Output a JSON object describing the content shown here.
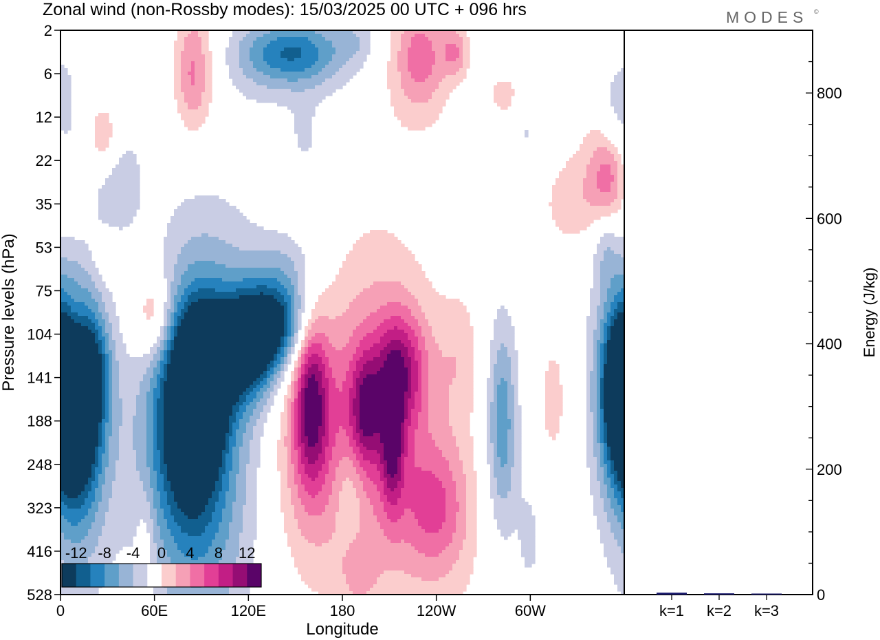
{
  "header": {
    "title": "Zonal wind (non-Rossby modes):  15/03/2025  00 UTC  + 096 hrs",
    "logo_text": "MODES",
    "logo_mark": "©"
  },
  "chart_data": [
    {
      "type": "heatmap",
      "title": "Zonal wind (non-Rossby modes):  15/03/2025  00 UTC  + 096 hrs",
      "xlabel": "Longitude",
      "ylabel": "Pressure levels (hPa)",
      "x_ticks": [
        "0",
        "60E",
        "120E",
        "180",
        "120W",
        "60W"
      ],
      "x_tick_degrees": [
        0,
        60,
        120,
        180,
        240,
        300
      ],
      "xlim": [
        0,
        360
      ],
      "y_ticks": [
        "2",
        "6",
        "12",
        "22",
        "35",
        "53",
        "75",
        "104",
        "141",
        "188",
        "248",
        "323",
        "416",
        "528"
      ],
      "y_order": "top-to-bottom",
      "grid": false,
      "colorbar": {
        "placement": "bottom-left",
        "tick_labels": [
          "-12",
          "-8",
          "-4",
          "0",
          "4",
          "8",
          "12"
        ],
        "levels": [
          -14,
          -12,
          -10,
          -8,
          -6,
          -4,
          -2,
          2,
          4,
          6,
          8,
          10,
          12,
          14
        ],
        "colors": [
          "#0d3b5c",
          "#115f8f",
          "#2682bd",
          "#5f9fc9",
          "#98b4d6",
          "#c9cde4",
          "#ffffff",
          "#fbcdcd",
          "#f6a0b6",
          "#f06fa5",
          "#e23f96",
          "#c21e85",
          "#950d74",
          "#5a0468"
        ]
      },
      "blobs": [
        {
          "lon": 10,
          "lev": 8.3,
          "rl": 9,
          "rv": 1.3,
          "value": -13.5
        },
        {
          "lon": 10,
          "lev": 8.5,
          "rl": 13,
          "rv": 2.0,
          "value": -10
        },
        {
          "lon": 12,
          "lev": 9.0,
          "rl": 18,
          "rv": 3.0,
          "value": -4
        },
        {
          "lon": 3,
          "lev": 2.0,
          "rl": 6,
          "rv": 1.2,
          "value": -3
        },
        {
          "lon": 25,
          "lev": 7.8,
          "rl": 7,
          "rv": 0.8,
          "value": -3
        },
        {
          "lon": 90,
          "lev": 8.3,
          "rl": 9,
          "rv": 1.0,
          "value": -13
        },
        {
          "lon": 82,
          "lev": 8.7,
          "rl": 14,
          "rv": 1.8,
          "value": -10
        },
        {
          "lon": 76,
          "lev": 9.1,
          "rl": 22,
          "rv": 2.6,
          "value": -6
        },
        {
          "lon": 100,
          "lev": 8.0,
          "rl": 24,
          "rv": 3.0,
          "value": -3.5
        },
        {
          "lon": 95,
          "lev": 11.6,
          "rl": 22,
          "rv": 3.0,
          "value": -3
        },
        {
          "lon": 112,
          "lev": 7.5,
          "rl": 16,
          "rv": 0.8,
          "value": -8
        },
        {
          "lon": 126,
          "lev": 7.0,
          "rl": 14,
          "rv": 0.7,
          "value": -9
        },
        {
          "lon": 143,
          "lev": 6.6,
          "rl": 14,
          "rv": 0.7,
          "value": -7
        },
        {
          "lon": 125,
          "lev": 6.8,
          "rl": 32,
          "rv": 1.3,
          "value": -3.5
        },
        {
          "lon": 150,
          "lev": 5.3,
          "rl": 16,
          "rv": 0.6,
          "value": -3
        },
        {
          "lon": 148,
          "lev": 0.5,
          "rl": 22,
          "rv": 0.5,
          "value": -7
        },
        {
          "lon": 145,
          "lev": 0.7,
          "rl": 34,
          "rv": 0.8,
          "value": -3.5
        },
        {
          "lon": 36,
          "lev": 3.5,
          "rl": 12,
          "rv": 0.9,
          "value": -3.5
        },
        {
          "lon": 156,
          "lev": 2.5,
          "rl": 7,
          "rv": 0.6,
          "value": -2.5
        },
        {
          "lon": 282,
          "lev": 9.0,
          "rl": 6,
          "rv": 1.5,
          "value": -5
        },
        {
          "lon": 282,
          "lev": 9.4,
          "rl": 10,
          "rv": 2.2,
          "value": -3
        },
        {
          "lon": 357,
          "lev": 8.3,
          "rl": 8,
          "rv": 1.2,
          "value": -10
        },
        {
          "lon": 355,
          "lev": 8.2,
          "rl": 14,
          "rv": 2.0,
          "value": -4
        },
        {
          "lon": 352,
          "lev": 1.8,
          "rl": 6,
          "rv": 0.8,
          "value": -2.5
        },
        {
          "lon": 348,
          "lev": 5.0,
          "rl": 6,
          "rv": 0.6,
          "value": -3
        },
        {
          "lon": 185,
          "lev": 10.6,
          "rl": 7,
          "rv": 0.8,
          "value": -3
        },
        {
          "lon": 300,
          "lev": 11.7,
          "rl": 6,
          "rv": 1.0,
          "value": -2.5
        },
        {
          "lon": 160,
          "lev": 8.5,
          "rl": 7,
          "rv": 1.3,
          "value": 8.5
        },
        {
          "lon": 160,
          "lev": 8.8,
          "rl": 14,
          "rv": 2.0,
          "value": 5
        },
        {
          "lon": 158,
          "lev": 9.0,
          "rl": 22,
          "rv": 2.8,
          "value": 2.5
        },
        {
          "lon": 195,
          "lev": 8.7,
          "rl": 7,
          "rv": 0.9,
          "value": 8
        },
        {
          "lon": 212,
          "lev": 9.4,
          "rl": 5,
          "rv": 1.1,
          "value": 9
        },
        {
          "lon": 218,
          "lev": 7.8,
          "rl": 11,
          "rv": 0.9,
          "value": 8
        },
        {
          "lon": 202,
          "lev": 8.8,
          "rl": 20,
          "rv": 2.2,
          "value": 5
        },
        {
          "lon": 208,
          "lev": 8.4,
          "rl": 33,
          "rv": 3.0,
          "value": 2.5
        },
        {
          "lon": 240,
          "lev": 11.0,
          "rl": 14,
          "rv": 1.0,
          "value": 5
        },
        {
          "lon": 240,
          "lev": 11.3,
          "rl": 26,
          "rv": 2.0,
          "value": 2.5
        },
        {
          "lon": 84,
          "lev": 1.0,
          "rl": 8,
          "rv": 0.9,
          "value": 5
        },
        {
          "lon": 90,
          "lev": 0.7,
          "rl": 12,
          "rv": 1.3,
          "value": 2.5
        },
        {
          "lon": 230,
          "lev": 0.6,
          "rl": 11,
          "rv": 0.8,
          "value": 5
        },
        {
          "lon": 225,
          "lev": 0.8,
          "rl": 20,
          "rv": 1.3,
          "value": 2.5
        },
        {
          "lon": 252,
          "lev": 0.5,
          "rl": 6,
          "rv": 0.4,
          "value": 5
        },
        {
          "lon": 350,
          "lev": 3.4,
          "rl": 8,
          "rv": 0.7,
          "value": 5
        },
        {
          "lon": 345,
          "lev": 3.3,
          "rl": 16,
          "rv": 1.1,
          "value": 2.5
        },
        {
          "lon": 60,
          "lev": 6.6,
          "rl": 8,
          "rv": 0.7,
          "value": 5
        },
        {
          "lon": 64,
          "lev": 6.5,
          "rl": 22,
          "rv": 1.2,
          "value": 2.5
        },
        {
          "lon": 9,
          "lev": 6.8,
          "rl": 6,
          "rv": 0.6,
          "value": 5
        },
        {
          "lon": 11,
          "lev": 6.0,
          "rl": 11,
          "rv": 2.0,
          "value": 2.5
        },
        {
          "lon": 28,
          "lev": 2.5,
          "rl": 7,
          "rv": 0.6,
          "value": 4.5
        },
        {
          "lon": 30,
          "lev": 5.2,
          "rl": 6,
          "rv": 0.4,
          "value": 2.5
        },
        {
          "lon": 315,
          "lev": 8.5,
          "rl": 10,
          "rv": 1.5,
          "value": 2.5
        },
        {
          "lon": 255,
          "lev": 7.5,
          "rl": 10,
          "rv": 1.0,
          "value": 2.5
        },
        {
          "lon": 190,
          "lev": 12.6,
          "rl": 10,
          "rv": 0.7,
          "value": 2.5
        },
        {
          "lon": 325,
          "lev": 4.0,
          "rl": 14,
          "rv": 0.7,
          "value": 2.5
        },
        {
          "lon": 285,
          "lev": 1.5,
          "rl": 12,
          "rv": 0.5,
          "value": 2.5
        },
        {
          "lon": 54,
          "lev": 12.0,
          "rl": 4,
          "rv": 1.0,
          "value": 2.5
        },
        {
          "lon": 298,
          "lev": 2.2,
          "rl": 6,
          "rv": 0.6,
          "value": -2.5
        },
        {
          "lon": 190,
          "lev": 0.2,
          "rl": 10,
          "rv": 0.4,
          "value": -2.5
        }
      ]
    },
    {
      "type": "bar",
      "categories": [
        "k=1",
        "k=2",
        "k=3"
      ],
      "values": [
        3,
        2,
        1.5
      ],
      "ylabel": "Energy (J/kg)",
      "y_ticks": [
        0,
        200,
        400,
        600,
        800
      ],
      "ylim": [
        0,
        900
      ],
      "grid": false,
      "bar_color": "#1a1a6e"
    }
  ]
}
